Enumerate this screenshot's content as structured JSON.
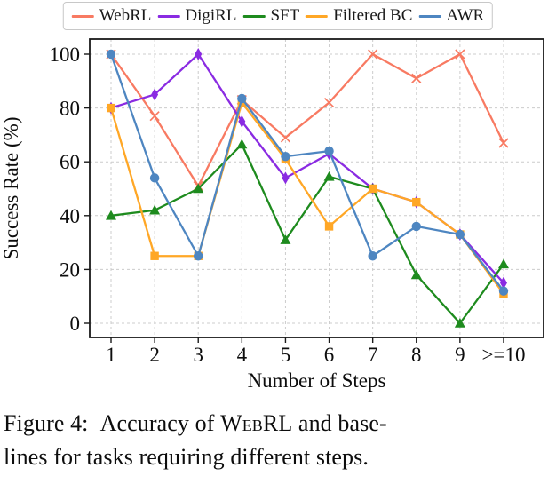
{
  "figure": {
    "caption": {
      "line1_pre": "Figure 4: Accuracy of ",
      "line1_smallcaps": "WebRL",
      "line1_post": " and base-",
      "line2": "lines for tasks requiring different steps."
    }
  },
  "chart_data": {
    "type": "line",
    "title": "",
    "xlabel": "Number of Steps",
    "ylabel": "Success Rate (%)",
    "categories": [
      "1",
      "2",
      "3",
      "4",
      "5",
      "6",
      "7",
      "8",
      "9",
      ">=10"
    ],
    "yticks": [
      0,
      20,
      40,
      60,
      80,
      100
    ],
    "ylim": [
      -5.5,
      105.5
    ],
    "grid": true,
    "grid_style": "dashed",
    "legend_position": "top-center",
    "series": [
      {
        "name": "WebRL",
        "color": "#f87a62",
        "marker": "x",
        "values": [
          100,
          77,
          51,
          83,
          69,
          82,
          100,
          91,
          100,
          67
        ]
      },
      {
        "name": "DigiRL",
        "color": "#8a2be2",
        "marker": "thin-diamond",
        "values": [
          80,
          85,
          100,
          75,
          54,
          63,
          50,
          45,
          33,
          15
        ]
      },
      {
        "name": "SFT",
        "color": "#1e8b1e",
        "marker": "triangle-up",
        "values": [
          40,
          42,
          50,
          66.5,
          31,
          54.5,
          50,
          18,
          0,
          22
        ]
      },
      {
        "name": "Filtered BC",
        "color": "#ffa726",
        "marker": "square",
        "values": [
          80,
          25,
          25,
          82,
          61,
          36,
          50,
          45,
          33,
          11
        ]
      },
      {
        "name": "AWR",
        "color": "#4e86c1",
        "marker": "circle",
        "values": [
          100,
          54,
          25,
          83.5,
          62,
          64,
          25,
          36,
          33,
          12
        ]
      }
    ],
    "colors": {
      "background": "#ffffff",
      "grid": "#cccccc",
      "spine": "#1a1a1a",
      "tick_text": "#0d0d0d"
    }
  }
}
